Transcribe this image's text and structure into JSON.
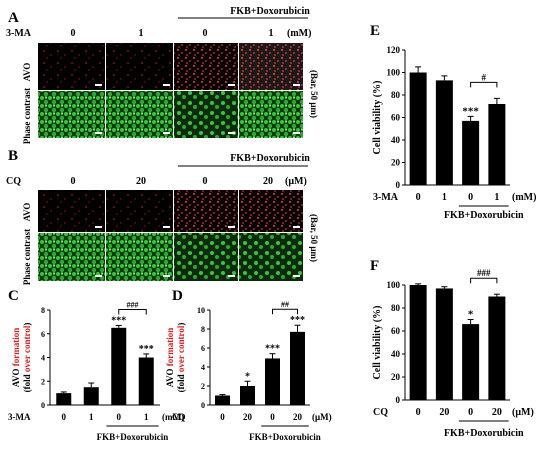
{
  "panels": {
    "A": {
      "letter": "A",
      "treatment_label": "3-MA",
      "doses": [
        "0",
        "1",
        "0",
        "1"
      ],
      "unit": "(mM)",
      "group_label": "FKB+Doxorubicin",
      "rows": [
        "AVO",
        "Phase contrast"
      ],
      "scale_note": "(Bar, 50 μm)"
    },
    "B": {
      "letter": "B",
      "treatment_label": "CQ",
      "doses": [
        "0",
        "20",
        "0",
        "20"
      ],
      "unit": "(μM)",
      "group_label": "FKB+Doxorubicin",
      "rows": [
        "AVO",
        "Phase contrast"
      ],
      "scale_note": "(Bar, 50 μm)"
    }
  },
  "colors": {
    "avo": "#d81e1e",
    "phase": "#2fb52f",
    "bar": "#000000"
  },
  "chart_data": [
    {
      "panel": "C",
      "type": "bar",
      "categories": [
        "0",
        "1",
        "0",
        "1"
      ],
      "values": [
        1.0,
        1.5,
        6.5,
        4.0
      ],
      "errors": [
        0.1,
        0.35,
        0.2,
        0.3
      ],
      "ylim": [
        0,
        8
      ],
      "yticks": [
        "0",
        "2",
        "4",
        "6",
        "8"
      ],
      "ylabel_parts": [
        "AVO ",
        "formation",
        "(fold ",
        "over control",
        ")"
      ],
      "treatment_label": "3-MA",
      "unit": "(mM)",
      "group_label": "FKB+Doxorubicin",
      "stars": [
        "",
        "",
        "***",
        "***"
      ],
      "bracket_label": "###"
    },
    {
      "panel": "D",
      "type": "bar",
      "categories": [
        "0",
        "20",
        "0",
        "20"
      ],
      "values": [
        1.0,
        2.0,
        4.9,
        7.7
      ],
      "errors": [
        0.1,
        0.5,
        0.5,
        0.7
      ],
      "ylim": [
        0,
        10
      ],
      "yticks": [
        "0",
        "2",
        "4",
        "6",
        "8",
        "10"
      ],
      "ylabel_parts": [
        "AVO ",
        "formation",
        "(fold ",
        "over control",
        ")"
      ],
      "treatment_label": "CQ",
      "unit": "(μM)",
      "group_label": "FKB+Doxorubicin",
      "stars": [
        "",
        "*",
        "***",
        "***"
      ],
      "bracket_label": "##"
    },
    {
      "panel": "E",
      "type": "bar",
      "categories": [
        "0",
        "1",
        "0",
        "1"
      ],
      "values": [
        100,
        93,
        57,
        72
      ],
      "errors": [
        5,
        4,
        4,
        5
      ],
      "ylim": [
        0,
        120
      ],
      "yticks": [
        "0",
        "20",
        "40",
        "60",
        "80",
        "100",
        "120"
      ],
      "ylabel": "Cell viability (%)",
      "treatment_label": "3-MA",
      "unit": "(mM)",
      "group_label": "FKB+Doxorubicin",
      "stars": [
        "",
        "",
        "***",
        ""
      ],
      "bracket_label": "#"
    },
    {
      "panel": "F",
      "type": "bar",
      "categories": [
        "0",
        "20",
        "0",
        "20"
      ],
      "values": [
        100,
        97,
        66,
        90
      ],
      "errors": [
        1,
        1.5,
        4,
        2
      ],
      "ylim": [
        0,
        100
      ],
      "yticks": [
        "0",
        "20",
        "40",
        "60",
        "80",
        "100"
      ],
      "ylabel": "Cell viability (%)",
      "treatment_label": "CQ",
      "unit": "(μM)",
      "group_label": "FKB+Doxorubicin",
      "stars": [
        "",
        "",
        "*",
        ""
      ],
      "bracket_label": "###"
    }
  ]
}
